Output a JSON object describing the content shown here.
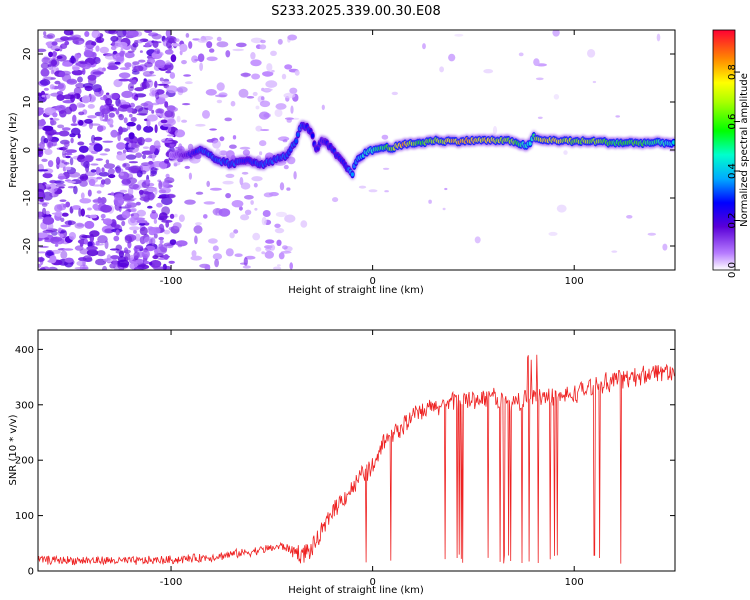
{
  "title": "S233.2025.339.00.30.E08",
  "chart_data": [
    {
      "type": "heatmap",
      "name": "spectrogram",
      "xlabel": "Height of straight line (km)",
      "ylabel": "Frequency (Hz)",
      "xlim": [
        -166,
        150
      ],
      "ylim": [
        -25,
        25
      ],
      "xticks": [
        -100,
        0,
        100
      ],
      "yticks": [
        -20,
        -10,
        0,
        10,
        20
      ],
      "colorbar": {
        "label": "Normalized spectral amplitude",
        "range": [
          0.0,
          0.97
        ],
        "ticks": [
          0.0,
          0.2,
          0.4,
          0.6,
          0.8
        ]
      },
      "ridge": {
        "x": [
          -100,
          -90,
          -85,
          -78,
          -70,
          -62,
          -55,
          -48,
          -42,
          -38,
          -35,
          -32,
          -30,
          -28,
          -25,
          -22,
          -18,
          -14,
          -10,
          -8,
          -5,
          0,
          5,
          10,
          15,
          20,
          25,
          30,
          40,
          50,
          60,
          70,
          75,
          78,
          80,
          82,
          90,
          100,
          110,
          120,
          130,
          140,
          150
        ],
        "y": [
          -1,
          -1,
          0,
          -2,
          -3,
          -2,
          -3,
          -2,
          -1,
          2,
          5.5,
          4.5,
          3,
          0,
          2,
          1,
          -1,
          -3,
          -5,
          -2,
          -1,
          0,
          0.5,
          0.5,
          1,
          1.5,
          1.5,
          2,
          1.8,
          2,
          2,
          1.8,
          1,
          1,
          3,
          2,
          2,
          1.8,
          1.8,
          1.5,
          1.5,
          1.5,
          1.5
        ],
        "amplitude": [
          0.1,
          0.25,
          0.35,
          0.35,
          0.35,
          0.3,
          0.35,
          0.35,
          0.35,
          0.35,
          0.35,
          0.3,
          0.3,
          0.3,
          0.25,
          0.3,
          0.3,
          0.3,
          0.4,
          0.4,
          0.45,
          0.55,
          0.6,
          0.75,
          0.95,
          0.7,
          0.65,
          0.75,
          0.85,
          0.9,
          0.8,
          0.7,
          0.5,
          0.5,
          0.6,
          0.8,
          0.85,
          0.7,
          0.75,
          0.6,
          0.65,
          0.55,
          0.45
        ]
      }
    },
    {
      "type": "line",
      "name": "snr",
      "xlabel": "Height of straight line (km)",
      "ylabel": "SNR (10 * v/v)",
      "xlim": [
        -166,
        150
      ],
      "ylim": [
        0,
        435
      ],
      "xticks": [
        -100,
        0,
        100
      ],
      "yticks": [
        0,
        100,
        200,
        300,
        400
      ],
      "color": "#ee2222",
      "trend": {
        "x": [
          -166,
          -120,
          -100,
          -80,
          -60,
          -45,
          -35,
          -30,
          -25,
          -20,
          -15,
          -10,
          -5,
          0,
          5,
          10,
          15,
          20,
          30,
          40,
          50,
          60,
          70,
          80,
          90,
          100,
          110,
          120,
          130,
          140,
          150
        ],
        "y": [
          20,
          18,
          20,
          25,
          35,
          45,
          30,
          40,
          70,
          110,
          130,
          150,
          175,
          190,
          230,
          250,
          260,
          280,
          295,
          305,
          310,
          315,
          300,
          320,
          310,
          320,
          335,
          345,
          350,
          360,
          360
        ]
      }
    }
  ]
}
